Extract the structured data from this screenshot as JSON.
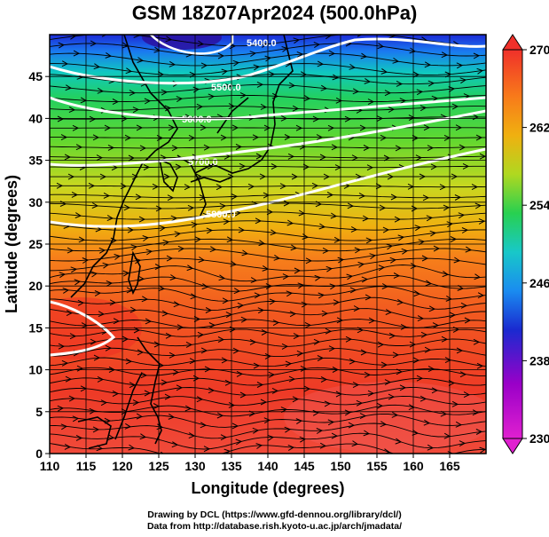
{
  "title": "GSM 18Z07Apr2024 (500.0hPa)",
  "map": {
    "type": "temperature shading with streamlines and geopotential height contours",
    "lon_range": [
      110,
      170
    ],
    "lat_range": [
      0,
      50
    ],
    "xlabel": "Longitude (degrees)",
    "ylabel": "Latitude  (degrees)",
    "x_ticks": [
      "110",
      "115",
      "120",
      "125",
      "130",
      "135",
      "140",
      "145",
      "150",
      "155",
      "160",
      "165"
    ],
    "y_ticks": [
      "0",
      "5",
      "10",
      "15",
      "20",
      "25",
      "30",
      "35",
      "40",
      "45"
    ],
    "grid": true,
    "contour_labels": [
      "5400.0",
      "5500.0",
      "5600.0",
      "5700.0",
      "5800.0"
    ],
    "contour_color": "#ffffff",
    "coastline_color": "#000000",
    "streamline_color": "#000000"
  },
  "colorbar": {
    "ticks": [
      "270",
      "262",
      "254",
      "246",
      "238",
      "230"
    ],
    "min": 230,
    "max": 270,
    "colors_high_to_low": [
      "#f0302a",
      "#f87a1a",
      "#f0b010",
      "#b0d820",
      "#28d050",
      "#18c8c8",
      "#1a8cf0",
      "#1a2ad0",
      "#9a00c8",
      "#e020d0"
    ]
  },
  "credit": {
    "line1": "Drawing by DCL (https://www.gfd-dennou.org/library/dcl/)",
    "line2": "Data from http://database.rish.kyoto-u.ac.jp/arch/jmadata/"
  }
}
